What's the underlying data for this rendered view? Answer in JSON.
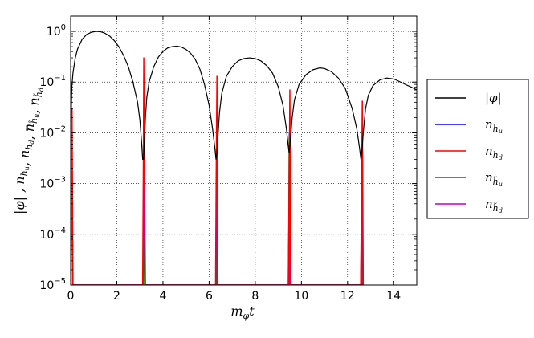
{
  "chart_data": {
    "type": "line",
    "xlabel": "m_φ t",
    "ylabel": "|φ| , n_hu, n_hd, n_h̃u, n_h̃d",
    "xlim": [
      0,
      15
    ],
    "ylim": [
      1e-05,
      2
    ],
    "yscale": "log",
    "grid": true,
    "x_ticks": [
      0,
      2,
      4,
      6,
      8,
      10,
      12,
      14
    ],
    "x_tick_labels": [
      "0",
      "2",
      "4",
      "6",
      "8",
      "10",
      "12",
      "14"
    ],
    "y_ticks": [
      1e-05,
      0.0001,
      0.001,
      0.01,
      0.1,
      1
    ],
    "y_tick_labels": [
      {
        "base": "10",
        "exp": "−5"
      },
      {
        "base": "10",
        "exp": "−4"
      },
      {
        "base": "10",
        "exp": "−3"
      },
      {
        "base": "10",
        "exp": "−2"
      },
      {
        "base": "10",
        "exp": "−1"
      },
      {
        "base": "10",
        "exp": "0"
      }
    ],
    "legend_position": "outside-right",
    "series": [
      {
        "name": "|φ|",
        "label_main": "|φ|",
        "label_sub": "",
        "label_tilde": false,
        "color": "#000000",
        "x": [
          0.0,
          0.05,
          0.1,
          0.2,
          0.3,
          0.5,
          0.7,
          0.9,
          1.1,
          1.3,
          1.4,
          1.5,
          1.7,
          1.9,
          2.1,
          2.3,
          2.5,
          2.7,
          2.9,
          3.0,
          3.08,
          3.12,
          3.16,
          3.2,
          3.24,
          3.3,
          3.4,
          3.6,
          3.8,
          4.0,
          4.2,
          4.4,
          4.6,
          4.8,
          5.0,
          5.2,
          5.4,
          5.6,
          5.8,
          6.0,
          6.15,
          6.25,
          6.3,
          6.34,
          6.38,
          6.45,
          6.55,
          6.75,
          7.0,
          7.25,
          7.5,
          7.75,
          8.0,
          8.25,
          8.5,
          8.75,
          9.0,
          9.2,
          9.35,
          9.42,
          9.47,
          9.52,
          9.6,
          9.7,
          9.9,
          10.2,
          10.5,
          10.8,
          11.0,
          11.3,
          11.6,
          11.9,
          12.2,
          12.4,
          12.52,
          12.58,
          12.62,
          12.68,
          12.78,
          12.9,
          13.1,
          13.4,
          13.7,
          14.0,
          14.2,
          14.5,
          14.8,
          15.0
        ],
        "y": [
          0.008,
          0.08,
          0.15,
          0.3,
          0.45,
          0.7,
          0.87,
          0.96,
          1.0,
          0.98,
          0.95,
          0.91,
          0.8,
          0.65,
          0.49,
          0.33,
          0.2,
          0.1,
          0.04,
          0.018,
          0.006,
          0.003,
          0.003,
          0.008,
          0.02,
          0.05,
          0.1,
          0.2,
          0.31,
          0.4,
          0.47,
          0.5,
          0.51,
          0.49,
          0.44,
          0.37,
          0.28,
          0.18,
          0.09,
          0.035,
          0.012,
          0.005,
          0.003,
          0.004,
          0.008,
          0.025,
          0.06,
          0.13,
          0.2,
          0.26,
          0.29,
          0.3,
          0.29,
          0.26,
          0.21,
          0.15,
          0.08,
          0.035,
          0.012,
          0.006,
          0.004,
          0.007,
          0.02,
          0.045,
          0.09,
          0.14,
          0.175,
          0.19,
          0.185,
          0.16,
          0.12,
          0.075,
          0.03,
          0.012,
          0.005,
          0.003,
          0.004,
          0.01,
          0.03,
          0.055,
          0.085,
          0.11,
          0.12,
          0.115,
          0.105,
          0.09,
          0.078,
          0.07
        ]
      },
      {
        "name": "n_hu",
        "label_main": "n",
        "label_sub": "h",
        "label_subsub": "u",
        "label_tilde": false,
        "color": "#0000ff",
        "x": [
          0.0,
          0.02,
          0.05,
          0.08,
          3.14,
          3.16,
          3.18,
          3.2,
          3.22,
          6.3,
          6.32,
          6.34,
          6.36,
          9.44,
          9.46,
          9.48,
          9.5,
          12.58,
          12.6,
          12.62,
          12.64
        ],
        "y": [
          1e-05,
          0.0003,
          0.03,
          1e-05,
          1e-05,
          0.0002,
          0.02,
          0.0002,
          1e-05,
          1e-05,
          0.0002,
          0.015,
          1e-05,
          1e-05,
          0.0002,
          0.01,
          1e-05,
          1e-05,
          0.0002,
          0.008,
          1e-05
        ]
      },
      {
        "name": "n_hd",
        "label_main": "n",
        "label_sub": "h",
        "label_subsub": "d",
        "label_tilde": false,
        "color": "#ff0000",
        "x": [
          0.0,
          0.03,
          0.06,
          0.1,
          3.12,
          3.15,
          3.17,
          3.2,
          3.24,
          6.28,
          6.31,
          6.34,
          6.38,
          9.43,
          9.47,
          9.5,
          9.54,
          12.57,
          12.61,
          12.64,
          12.68
        ],
        "y": [
          1e-05,
          0.0005,
          0.03,
          1e-05,
          1e-05,
          0.002,
          0.3,
          0.002,
          1e-05,
          1e-05,
          0.002,
          0.13,
          1e-05,
          1e-05,
          0.001,
          0.07,
          1e-05,
          1e-05,
          0.001,
          0.042,
          1e-05
        ]
      },
      {
        "name": "n_h̃u",
        "label_main": "n",
        "label_sub": "h",
        "label_subsub": "u",
        "label_tilde": true,
        "color": "#008000",
        "x": [
          0.0,
          0.02,
          0.05,
          0.08,
          3.15,
          3.17,
          3.19,
          3.21,
          6.31,
          6.33,
          6.35,
          9.45,
          9.47,
          9.49,
          12.59,
          12.61,
          12.63
        ],
        "y": [
          1e-05,
          0.0002,
          0.02,
          1e-05,
          1e-05,
          0.0002,
          0.015,
          1e-05,
          1e-05,
          0.01,
          1e-05,
          1e-05,
          0.008,
          1e-05,
          1e-05,
          0.006,
          1e-05
        ]
      },
      {
        "name": "n_h̃d",
        "label_main": "n",
        "label_sub": "h",
        "label_subsub": "d",
        "label_tilde": true,
        "color": "#bf00bf",
        "x": [
          0.0,
          0.02,
          0.05,
          0.09,
          3.14,
          3.16,
          3.18,
          3.2,
          3.23,
          6.29,
          6.32,
          6.35,
          6.38,
          9.44,
          9.47,
          9.5,
          9.53,
          12.58,
          12.61,
          12.64,
          12.67
        ],
        "y": [
          1e-05,
          0.0005,
          0.02,
          1e-05,
          1e-05,
          0.0003,
          0.018,
          0.0003,
          1e-05,
          1e-05,
          0.0003,
          0.012,
          1e-05,
          1e-05,
          0.0002,
          0.009,
          1e-05,
          1e-05,
          0.0002,
          0.007,
          1e-05
        ]
      }
    ]
  }
}
